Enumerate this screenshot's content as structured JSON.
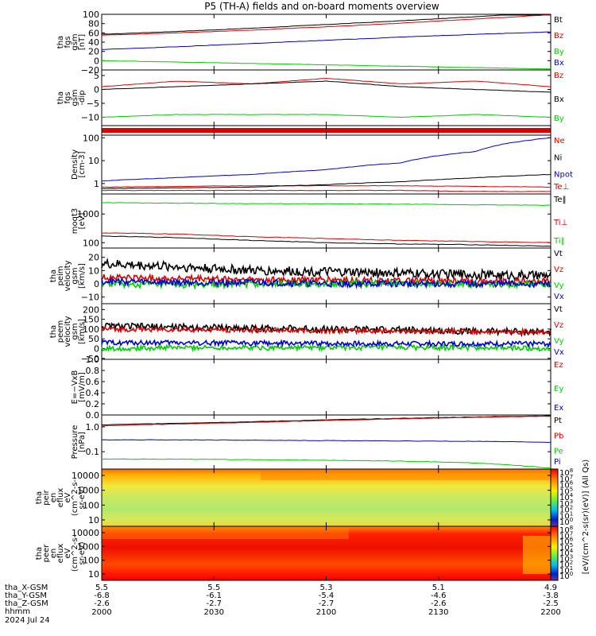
{
  "title": "P5 (TH-A) fields and on-board moments overview",
  "colors": {
    "black": "#000000",
    "red": "#dd0000",
    "green": "#00cc00",
    "blue": "#0000cc"
  },
  "date_label": "2024 Jul 24",
  "footer": {
    "row_labels": [
      "tha_X-GSM",
      "tha_Y-GSM",
      "tha_Z-GSM",
      "hhmm"
    ],
    "columns": [
      {
        "x": "5.5",
        "y": "-6.8",
        "z": "-2.6",
        "t": "2000"
      },
      {
        "x": "5.5",
        "y": "-6.1",
        "z": "-2.7",
        "t": "2030"
      },
      {
        "x": "5.3",
        "y": "-5.4",
        "z": "-2.7",
        "t": "2100"
      },
      {
        "x": "5.1",
        "y": "-4.6",
        "z": "-2.6",
        "t": "2130"
      },
      {
        "x": "4.9",
        "y": "-3.8",
        "z": "-2.5",
        "t": "2200"
      }
    ]
  },
  "colorbars": [
    {
      "ticks": [
        "10^8",
        "10^7",
        "10^6",
        "10^5",
        "10^4",
        "10^3",
        "10^2",
        "10^1",
        "10^0"
      ]
    },
    {
      "ticks": [
        "10^8",
        "10^7",
        "10^6",
        "10^5",
        "10^4",
        "10^3",
        "10^2",
        "10^1",
        "10^0"
      ]
    }
  ],
  "colorbar_unit": "[eV/(cm^2-s(sr)(eV)] (All Qs)",
  "chart_data": [
    {
      "type": "line",
      "ylabel": [
        "tha",
        "fgs",
        "gsm",
        "[nT]"
      ],
      "yticks": [
        "100",
        "80",
        "60",
        "40",
        "20",
        "0",
        "−20"
      ],
      "ylim": [
        -20,
        100
      ],
      "series": [
        {
          "name": "Bt",
          "color": "black",
          "values": [
            57,
            63,
            70,
            78,
            86,
            95,
            105
          ]
        },
        {
          "name": "Bz",
          "color": "red",
          "values": [
            55,
            60,
            66,
            73,
            81,
            90,
            99
          ]
        },
        {
          "name": "By",
          "color": "green",
          "values": [
            0,
            -3,
            -6,
            -9,
            -12,
            -15,
            -18
          ]
        },
        {
          "name": "Bx",
          "color": "blue",
          "values": [
            24,
            30,
            37,
            44,
            51,
            57,
            62
          ]
        }
      ]
    },
    {
      "type": "line",
      "ylabel": [
        "tha",
        "fgs",
        "gsm",
        "-dip"
      ],
      "yticks": [
        "5",
        "0",
        "−5",
        "−10"
      ],
      "ylim": [
        -13,
        7
      ],
      "series": [
        {
          "name": "Bz",
          "color": "red",
          "values": [
            1,
            3,
            2,
            4,
            2,
            3,
            1
          ]
        },
        {
          "name": "Bx",
          "color": "black",
          "values": [
            0,
            1,
            2,
            3,
            1,
            0,
            -1
          ]
        },
        {
          "name": "By",
          "color": "green",
          "values": [
            -10,
            -9,
            -9,
            -9,
            -10,
            -9,
            -10
          ]
        }
      ]
    },
    {
      "type": "bar",
      "ylabel": [],
      "yticks": []
    },
    {
      "type": "line",
      "ylabel": [
        "Density",
        "[cm-3]"
      ],
      "yticks": [
        "100",
        "10",
        "1"
      ],
      "ylim": [
        0.35,
        130
      ],
      "series": [
        {
          "name": "Ne",
          "color": "red",
          "values": [
            0.7,
            0.75,
            0.8,
            0.8,
            0.8,
            0.75,
            0.7
          ]
        },
        {
          "name": "Ni",
          "color": "black",
          "values": [
            0.6,
            0.65,
            0.7,
            0.9,
            1.2,
            1.8,
            2.5
          ]
        },
        {
          "name": "Npot",
          "color": "blue",
          "values": [
            1.3,
            1.8,
            2.5,
            4,
            8,
            25,
            100
          ]
        },
        {
          "name": "Te⊥",
          "color": "red",
          "values": [
            0.5,
            0.5,
            0.5,
            0.5,
            0.5,
            0.45,
            0.45
          ]
        }
      ]
    },
    {
      "type": "line",
      "ylabel": [
        "moqt3",
        "[eV]"
      ],
      "yticks": [
        "1000",
        "100"
      ],
      "ylim": [
        65,
        5000
      ],
      "series": [
        {
          "name": "Te‖",
          "color": "black",
          "values": [
            170,
            150,
            120,
            100,
            90,
            85,
            75
          ]
        },
        {
          "name": "Ti⊥",
          "color": "red",
          "values": [
            220,
            200,
            160,
            140,
            120,
            110,
            100
          ]
        },
        {
          "name": "Ti‖",
          "color": "green",
          "values": [
            2500,
            2400,
            2300,
            2250,
            2200,
            2100,
            2000
          ]
        }
      ]
    },
    {
      "type": "line",
      "ylabel": [
        "tha",
        "peim",
        "velocity",
        "gsm",
        "[km/s]"
      ],
      "yticks": [
        "20",
        "10",
        "0",
        "−10"
      ],
      "ylim": [
        -15,
        27
      ],
      "series": [
        {
          "name": "Vt",
          "color": "black",
          "values": [
            15,
            13,
            10,
            9,
            8,
            7,
            6
          ]
        },
        {
          "name": "Vz",
          "color": "red",
          "values": [
            5,
            4,
            3,
            3,
            2,
            2,
            2
          ]
        },
        {
          "name": "Vy",
          "color": "green",
          "values": [
            0,
            -1,
            0,
            0,
            0,
            0,
            0
          ]
        },
        {
          "name": "Vx",
          "color": "blue",
          "values": [
            2,
            1,
            1,
            0,
            0,
            0,
            0
          ]
        }
      ]
    },
    {
      "type": "line",
      "ylabel": [
        "tha",
        "peem",
        "velocity",
        "gsm",
        "[km/s]"
      ],
      "yticks": [
        "200",
        "150",
        "100",
        "50",
        "0",
        "−50"
      ],
      "ylim": [
        -55,
        230
      ],
      "series": [
        {
          "name": "Vt",
          "color": "black",
          "values": [
            115,
            110,
            105,
            100,
            95,
            90,
            85
          ]
        },
        {
          "name": "Vz",
          "color": "red",
          "values": [
            100,
            98,
            95,
            92,
            90,
            88,
            85
          ]
        },
        {
          "name": "Vy",
          "color": "green",
          "values": [
            0,
            5,
            5,
            5,
            5,
            5,
            0
          ]
        },
        {
          "name": "Vx",
          "color": "blue",
          "values": [
            30,
            30,
            28,
            25,
            25,
            25,
            25
          ]
        }
      ]
    },
    {
      "type": "line",
      "ylabel": [
        "E=−VxB",
        "[mV/m]"
      ],
      "yticks": [
        "1.0",
        "0.8",
        "0.6",
        "0.4",
        "0.2",
        "0.0"
      ],
      "ylim": [
        0,
        1
      ],
      "series": [
        {
          "name": "Ez",
          "color": "red",
          "values": []
        },
        {
          "name": "Ey",
          "color": "green",
          "values": []
        },
        {
          "name": "Ex",
          "color": "blue",
          "values": []
        }
      ]
    },
    {
      "type": "line",
      "ylabel": [
        "Pressure",
        "[nPa]"
      ],
      "yticks": [
        "1.0",
        "0.1"
      ],
      "ylim": [
        0.02,
        3
      ],
      "series": [
        {
          "name": "Pt",
          "color": "black",
          "values": [
            1.2,
            1.4,
            1.6,
            1.9,
            2.2,
            2.5,
            2.8
          ]
        },
        {
          "name": "Pb",
          "color": "red",
          "values": [
            1.1,
            1.3,
            1.5,
            1.8,
            2.1,
            2.4,
            2.7
          ]
        },
        {
          "name": "Pe",
          "color": "green",
          "values": [
            0.05,
            0.05,
            0.048,
            0.045,
            0.042,
            0.035,
            0.022
          ]
        },
        {
          "name": "Pi",
          "color": "blue",
          "values": [
            0.3,
            0.3,
            0.29,
            0.28,
            0.27,
            0.26,
            0.24
          ]
        }
      ]
    },
    {
      "type": "heatmap",
      "ylabel": [
        "tha",
        "peir",
        "en",
        "eflux",
        "eV",
        "(cm^2-s-",
        "sr-eV)"
      ],
      "yticks": [
        "10000",
        "1000",
        "100",
        "10"
      ]
    },
    {
      "type": "heatmap",
      "ylabel": [
        "tha",
        "peer",
        "en",
        "eflux",
        "eV",
        "(cm^2-s-",
        "sr-eV)"
      ],
      "yticks": [
        "10000",
        "1000",
        "100",
        "10"
      ]
    }
  ]
}
